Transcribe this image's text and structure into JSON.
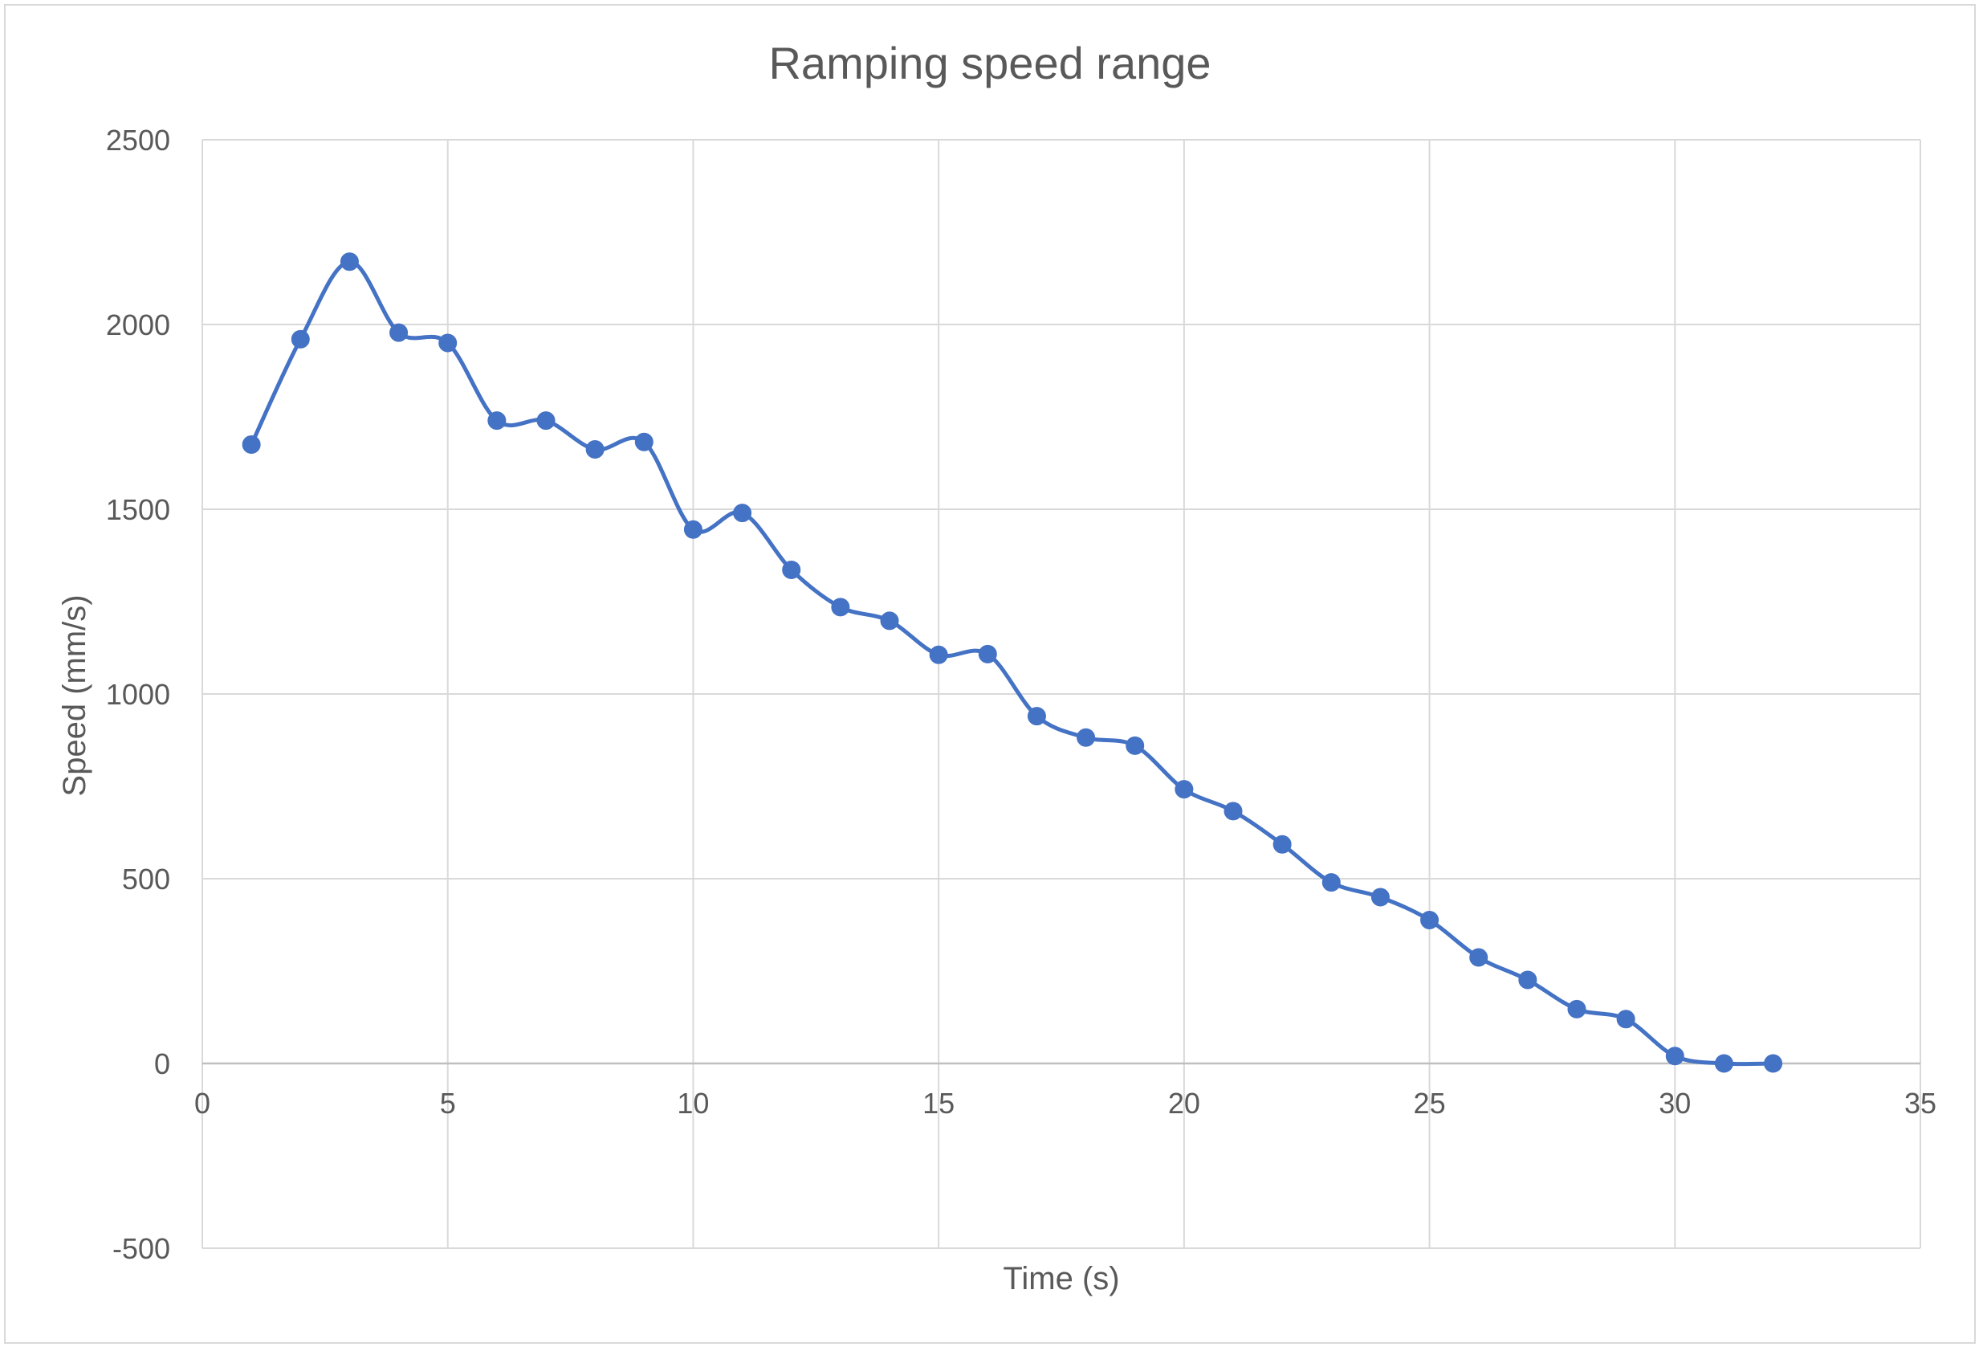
{
  "chart_data": {
    "type": "line",
    "title": "Ramping speed range",
    "xlabel": "Time (s)",
    "ylabel": "Speed (mm/s)",
    "xlim": [
      0,
      35
    ],
    "ylim": [
      -500,
      2500
    ],
    "xticks": [
      0,
      5,
      10,
      15,
      20,
      25,
      30,
      35
    ],
    "yticks": [
      -500,
      0,
      500,
      1000,
      1500,
      2000,
      2500
    ],
    "grid": true,
    "legend": "none",
    "smoothed": true,
    "series_color": "#4472c4",
    "series": [
      {
        "x": [
          1,
          2,
          3,
          4,
          5,
          6,
          7,
          8,
          9,
          10,
          11,
          12,
          13,
          14,
          15,
          16,
          17,
          18,
          19,
          20,
          21,
          22,
          23,
          24,
          25,
          26,
          27,
          28,
          29,
          30,
          31,
          32
        ],
        "y": [
          1675,
          1960,
          2170,
          1978,
          1950,
          1740,
          1740,
          1662,
          1682,
          1445,
          1490,
          1336,
          1235,
          1198,
          1106,
          1108,
          940,
          882,
          860,
          742,
          683,
          593,
          490,
          450,
          388,
          287,
          226,
          147,
          120,
          20,
          0,
          0
        ]
      }
    ]
  }
}
